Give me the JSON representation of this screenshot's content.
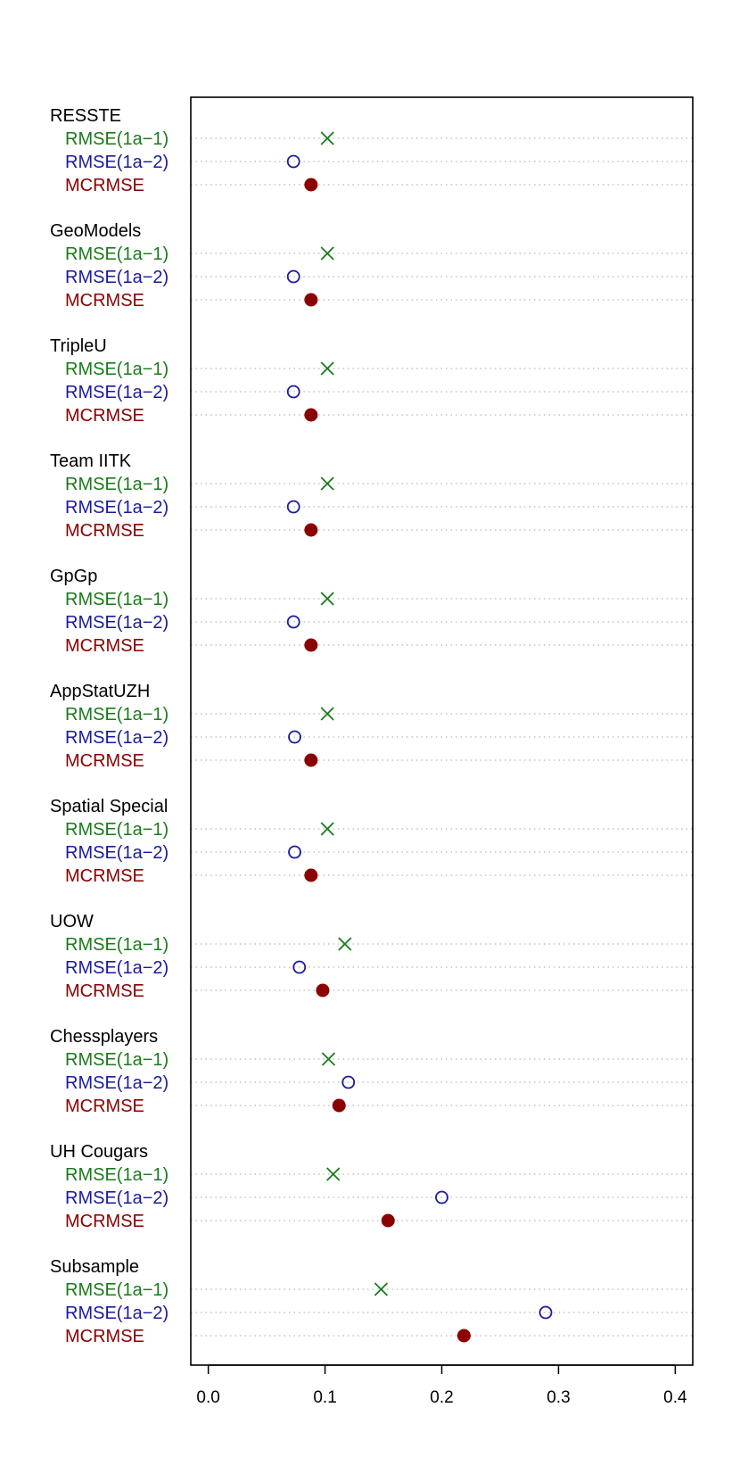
{
  "chart_data": {
    "type": "scatter",
    "subtype": "dotchart",
    "xlim": [
      -0.015,
      0.415
    ],
    "x_ticks": [
      "0.0",
      "0.1",
      "0.2",
      "0.3",
      "0.4"
    ],
    "grid": "dotted horizontal guide lines per row",
    "colors": {
      "RMSE(1a−1)": "#1a7a1a",
      "RMSE(1a−2)": "#1a1aa0",
      "MCRMSE": "#8b0000"
    },
    "markers": {
      "RMSE(1a−1)": "cross",
      "RMSE(1a−2)": "open-circle",
      "MCRMSE": "filled-circle"
    },
    "metrics": [
      "RMSE(1a−1)",
      "RMSE(1a−2)",
      "MCRMSE"
    ],
    "groups": [
      {
        "name": "RESSTE",
        "values": [
          0.102,
          0.073,
          0.088
        ]
      },
      {
        "name": "GeoModels",
        "values": [
          0.102,
          0.073,
          0.088
        ]
      },
      {
        "name": "TripleU",
        "values": [
          0.102,
          0.073,
          0.088
        ]
      },
      {
        "name": "Team IITK",
        "values": [
          0.102,
          0.073,
          0.088
        ]
      },
      {
        "name": "GpGp",
        "values": [
          0.102,
          0.073,
          0.088
        ]
      },
      {
        "name": "AppStatUZH",
        "values": [
          0.102,
          0.074,
          0.088
        ]
      },
      {
        "name": "Spatial Special",
        "values": [
          0.102,
          0.074,
          0.088
        ]
      },
      {
        "name": "UOW",
        "values": [
          0.117,
          0.078,
          0.098
        ]
      },
      {
        "name": "Chessplayers",
        "values": [
          0.103,
          0.12,
          0.112
        ]
      },
      {
        "name": "UH Cougars",
        "values": [
          0.107,
          0.2,
          0.154
        ]
      },
      {
        "name": "Subsample",
        "values": [
          0.148,
          0.289,
          0.219
        ]
      }
    ]
  }
}
